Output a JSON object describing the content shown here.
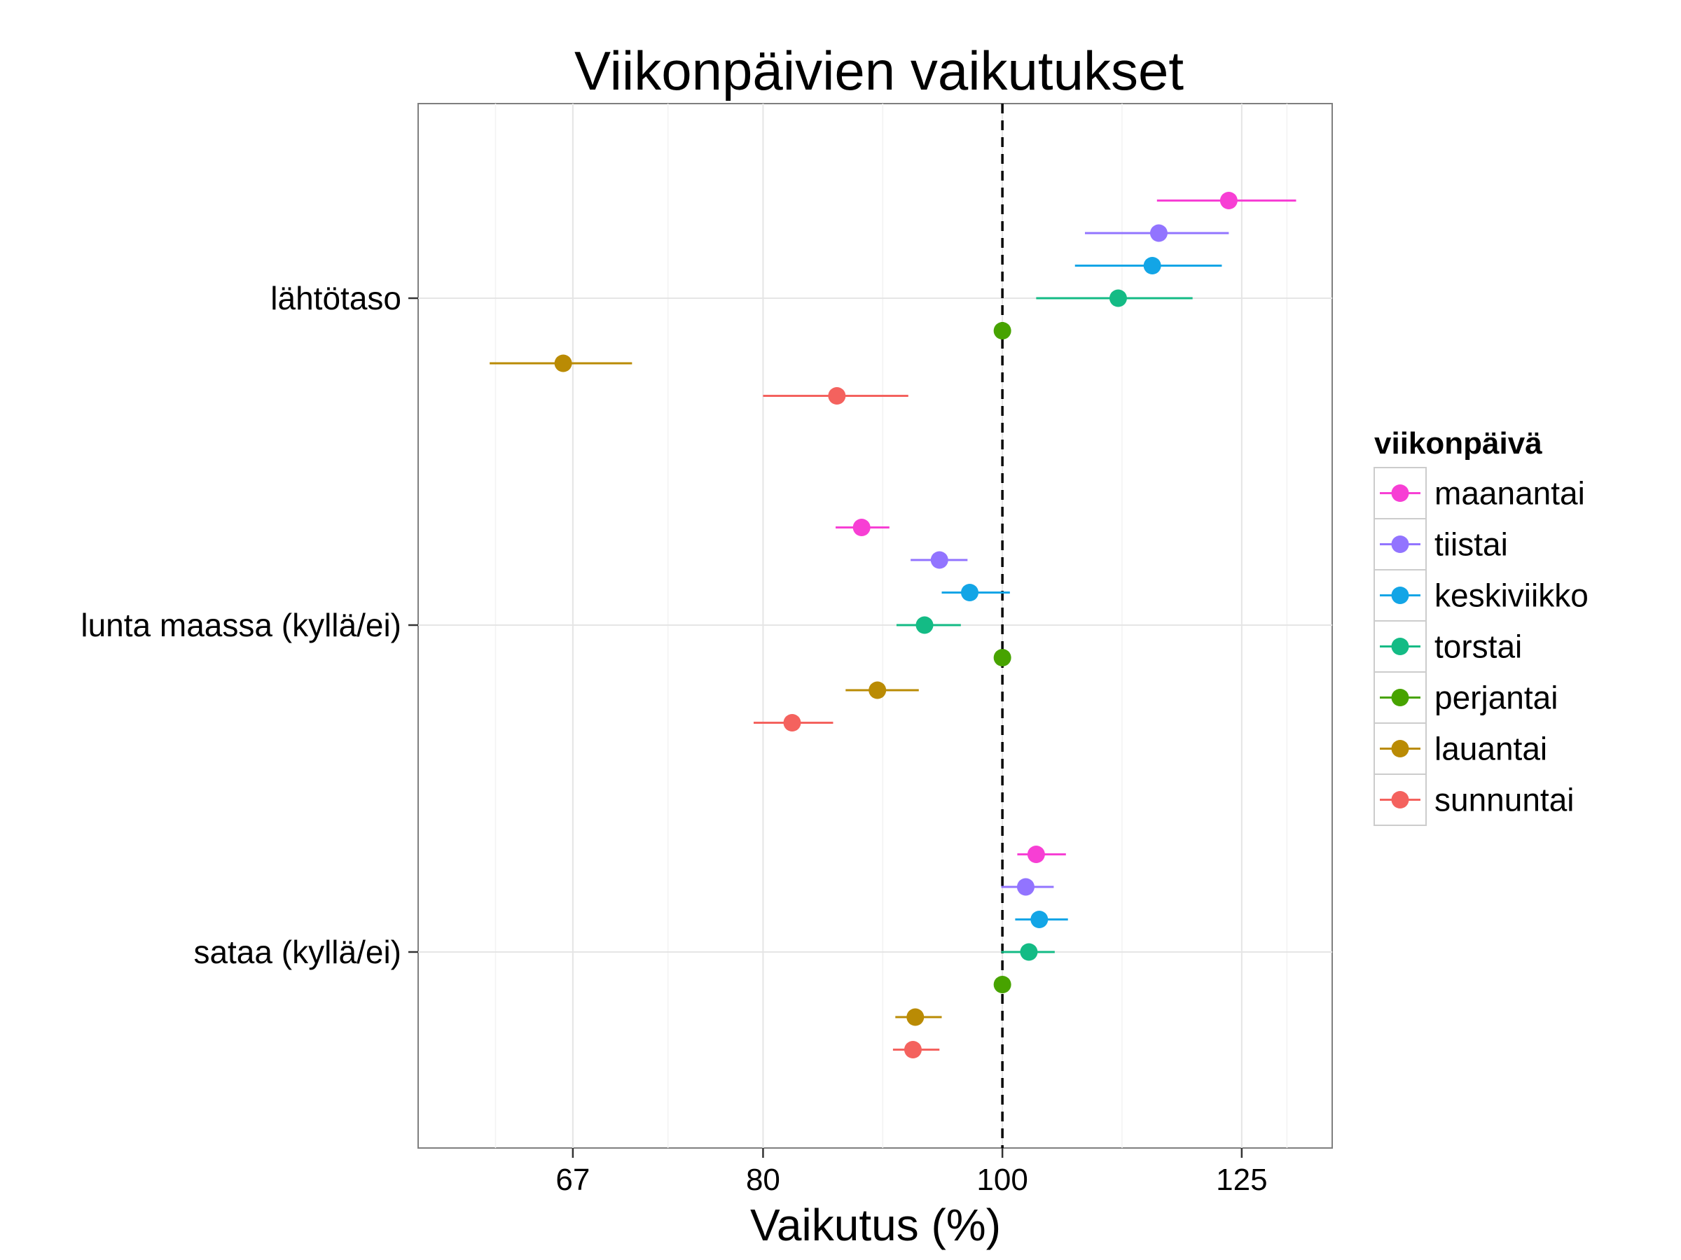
{
  "chart_data": {
    "type": "scatter",
    "title": "Viikonpäivien vaikutukset",
    "xlabel": "Vaikutus (%)",
    "ylabel": "",
    "x_scale": "log",
    "xlim": [
      58,
      136
    ],
    "x_ticks": [
      67,
      80,
      100,
      125
    ],
    "x_tick_labels": [
      "67",
      "80",
      "100",
      "125"
    ],
    "reference_line": {
      "x": 100,
      "style": "dashed"
    },
    "grid": true,
    "background": "#ffffff",
    "categories": [
      "lähtötaso",
      "lunta maassa (kyllä/ei)",
      "sataa (kyllä/ei)"
    ],
    "legend": {
      "title": "viikonpäivä",
      "position": "right"
    },
    "series": [
      {
        "name": "maanantai",
        "color": "#F73FD4",
        "values": [
          123.5,
          87.7,
          103.2
        ],
        "lower": [
          115.5,
          85.6,
          101.4
        ],
        "upper": [
          131.5,
          90.0,
          106.1
        ]
      },
      {
        "name": "tiistai",
        "color": "#9274FF",
        "values": [
          115.7,
          94.3,
          102.2
        ],
        "lower": [
          108.0,
          91.8,
          99.9
        ],
        "upper": [
          123.5,
          96.8,
          104.9
        ]
      },
      {
        "name": "keskiviikko",
        "color": "#13A5E6",
        "values": [
          115.0,
          97.0,
          103.5
        ],
        "lower": [
          107.0,
          94.5,
          101.2
        ],
        "upper": [
          122.7,
          100.7,
          106.3
        ]
      },
      {
        "name": "torstai",
        "color": "#14BB85",
        "values": [
          111.4,
          93.0,
          102.5
        ],
        "lower": [
          103.2,
          90.6,
          99.9
        ],
        "upper": [
          119.4,
          96.2,
          105.0
        ]
      },
      {
        "name": "perjantai",
        "color": "#47A300",
        "values": [
          100.0,
          100.0,
          100.0
        ],
        "lower": [
          100.0,
          100.0,
          100.0
        ],
        "upper": [
          100.0,
          100.0,
          100.0
        ]
      },
      {
        "name": "lauantai",
        "color": "#BA8B04",
        "values": [
          66.4,
          89.0,
          92.2
        ],
        "lower": [
          62.0,
          86.4,
          90.5
        ],
        "upper": [
          70.8,
          92.5,
          94.5
        ]
      },
      {
        "name": "sunnuntai",
        "color": "#F4625E",
        "values": [
          85.7,
          82.2,
          92.0
        ],
        "lower": [
          80.0,
          79.3,
          90.3
        ],
        "upper": [
          91.6,
          85.4,
          94.3
        ]
      }
    ]
  }
}
